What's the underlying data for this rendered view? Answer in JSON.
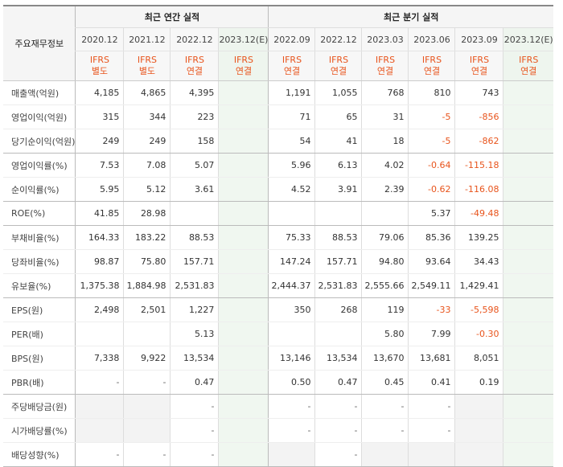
{
  "header": {
    "row_label": "주요재무정보",
    "annual_title": "최근 연간 실적",
    "quarterly_title": "최근 분기 실적"
  },
  "periods": [
    {
      "label": "2020.12",
      "ifrs1": "IFRS",
      "ifrs2": "별도"
    },
    {
      "label": "2021.12",
      "ifrs1": "IFRS",
      "ifrs2": "별도"
    },
    {
      "label": "2022.12",
      "ifrs1": "IFRS",
      "ifrs2": "연결"
    },
    {
      "label": "2023.12(E)",
      "ifrs1": "IFRS",
      "ifrs2": "연결"
    },
    {
      "label": "2022.09",
      "ifrs1": "IFRS",
      "ifrs2": "연결"
    },
    {
      "label": "2022.12",
      "ifrs1": "IFRS",
      "ifrs2": "연결"
    },
    {
      "label": "2023.03",
      "ifrs1": "IFRS",
      "ifrs2": "연결"
    },
    {
      "label": "2023.06",
      "ifrs1": "IFRS",
      "ifrs2": "연결"
    },
    {
      "label": "2023.09",
      "ifrs1": "IFRS",
      "ifrs2": "연결"
    },
    {
      "label": "2023.12(E)",
      "ifrs1": "IFRS",
      "ifrs2": "연결"
    }
  ],
  "rows": [
    {
      "label": "매출액(억원)",
      "values": [
        "4,185",
        "4,865",
        "4,395",
        "",
        "1,191",
        "1,055",
        "768",
        "810",
        "743",
        ""
      ]
    },
    {
      "label": "영업이익(억원)",
      "values": [
        "315",
        "344",
        "223",
        "",
        "71",
        "65",
        "31",
        "-5",
        "-856",
        ""
      ]
    },
    {
      "label": "당기순이익(억원)",
      "values": [
        "249",
        "249",
        "158",
        "",
        "54",
        "41",
        "18",
        "-5",
        "-862",
        ""
      ]
    },
    {
      "label": "영업이익률(%)",
      "values": [
        "7.53",
        "7.08",
        "5.07",
        "",
        "5.96",
        "6.13",
        "4.02",
        "-0.64",
        "-115.18",
        ""
      ]
    },
    {
      "label": "순이익률(%)",
      "values": [
        "5.95",
        "5.12",
        "3.61",
        "",
        "4.52",
        "3.91",
        "2.39",
        "-0.62",
        "-116.08",
        ""
      ]
    },
    {
      "label": "ROE(%)",
      "values": [
        "41.85",
        "28.98",
        "",
        "",
        "",
        "",
        "",
        "5.37",
        "-49.48",
        ""
      ]
    },
    {
      "label": "부채비율(%)",
      "values": [
        "164.33",
        "183.22",
        "88.53",
        "",
        "75.33",
        "88.53",
        "79.06",
        "85.36",
        "139.25",
        ""
      ]
    },
    {
      "label": "당좌비율(%)",
      "values": [
        "98.87",
        "75.80",
        "157.71",
        "",
        "147.24",
        "157.71",
        "94.80",
        "93.64",
        "34.43",
        ""
      ]
    },
    {
      "label": "유보율(%)",
      "values": [
        "1,375.38",
        "1,884.98",
        "2,531.83",
        "",
        "2,444.37",
        "2,531.83",
        "2,555.66",
        "2,549.11",
        "1,429.41",
        ""
      ]
    },
    {
      "label": "EPS(원)",
      "values": [
        "2,498",
        "2,501",
        "1,227",
        "",
        "350",
        "268",
        "119",
        "-33",
        "-5,598",
        ""
      ]
    },
    {
      "label": "PER(배)",
      "values": [
        "",
        "",
        "5.13",
        "",
        "",
        "",
        "5.80",
        "7.99",
        "-0.30",
        ""
      ]
    },
    {
      "label": "BPS(원)",
      "values": [
        "7,338",
        "9,922",
        "13,534",
        "",
        "13,146",
        "13,534",
        "13,670",
        "13,681",
        "8,051",
        ""
      ]
    },
    {
      "label": "PBR(배)",
      "values": [
        "-",
        "-",
        "0.47",
        "",
        "0.50",
        "0.47",
        "0.45",
        "0.41",
        "0.19",
        ""
      ]
    },
    {
      "label": "주당배당금(원)",
      "values": [
        "",
        "",
        "-",
        "",
        "-",
        "-",
        "-",
        "-",
        "",
        ""
      ]
    },
    {
      "label": "시가배당률(%)",
      "values": [
        "",
        "",
        "-",
        "",
        "-",
        "-",
        "-",
        "-",
        "",
        ""
      ]
    },
    {
      "label": "배당성향(%)",
      "values": [
        "-",
        "-",
        "-",
        "",
        "",
        "-",
        "",
        "",
        "",
        ""
      ]
    }
  ],
  "colors": {
    "accent": "#e8541c",
    "estimate_bg": "#f0f7f0"
  }
}
